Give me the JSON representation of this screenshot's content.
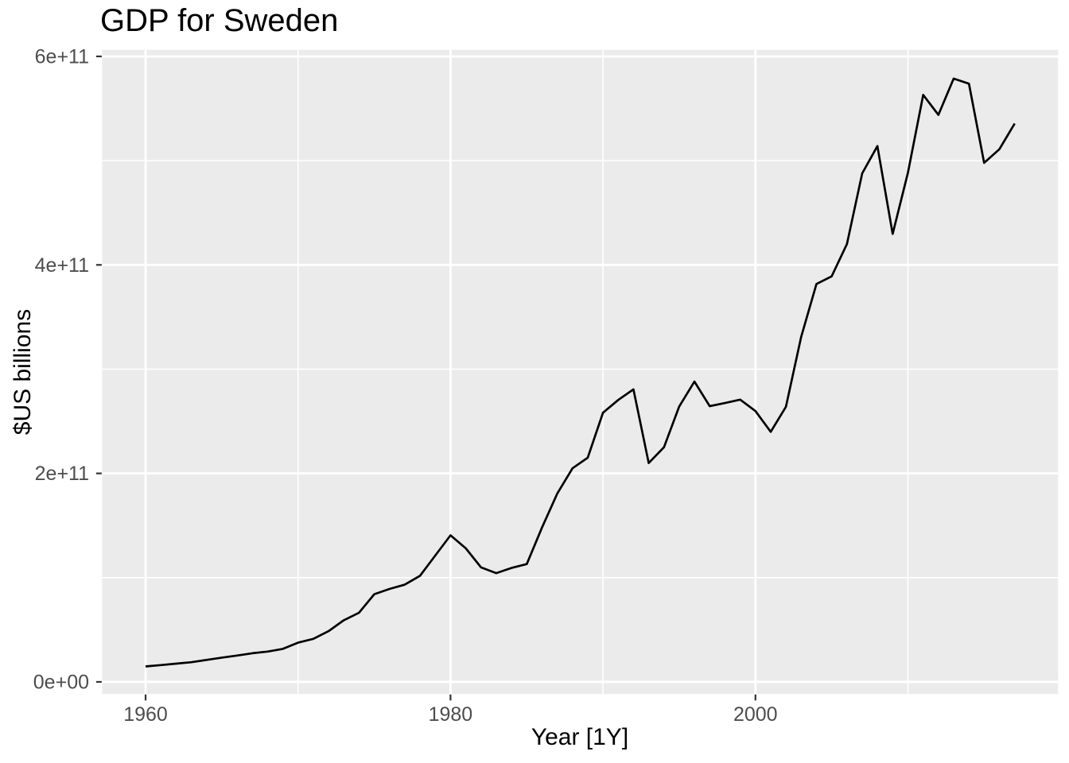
{
  "title": "GDP for Sweden",
  "chart_data": {
    "type": "line",
    "title": "GDP for Sweden",
    "xlabel": "Year [1Y]",
    "ylabel": "$US billions",
    "units": "current US dollars (y axis labels in scientific notation)",
    "x": [
      1960,
      1961,
      1962,
      1963,
      1964,
      1965,
      1966,
      1967,
      1968,
      1969,
      1970,
      1971,
      1972,
      1973,
      1974,
      1975,
      1976,
      1977,
      1978,
      1979,
      1980,
      1981,
      1982,
      1983,
      1984,
      1985,
      1986,
      1987,
      1988,
      1989,
      1990,
      1991,
      1992,
      1993,
      1994,
      1995,
      1996,
      1997,
      1998,
      1999,
      2000,
      2001,
      2002,
      2003,
      2004,
      2005,
      2006,
      2007,
      2008,
      2009,
      2010,
      2011,
      2012,
      2013,
      2014,
      2015,
      2016,
      2017
    ],
    "series": [
      {
        "name": "GDP for Sweden",
        "values_billions": [
          14.8,
          16.1,
          17.5,
          18.9,
          21.1,
          23.3,
          25.3,
          27.5,
          29.1,
          31.7,
          37.6,
          41.3,
          48.7,
          59.1,
          66.4,
          84.1,
          89.2,
          93.3,
          101.8,
          121.2,
          140.6,
          128.1,
          109.8,
          104.3,
          109.3,
          113.0,
          148.0,
          180.6,
          204.9,
          215.0,
          258.2,
          270.5,
          280.6,
          209.9,
          225.1,
          264.1,
          288.1,
          264.5,
          267.5,
          270.8,
          259.8,
          239.9,
          263.9,
          331.1,
          381.7,
          389.0,
          420.0,
          487.8,
          514.0,
          429.7,
          488.4,
          563.1,
          543.9,
          578.7,
          573.8,
          497.9,
          511.0,
          535.6
        ]
      }
    ],
    "x_ticks": [
      {
        "value": 1960,
        "label": "1960"
      },
      {
        "value": 1980,
        "label": "1980"
      },
      {
        "value": 2000,
        "label": "2000"
      }
    ],
    "x_minor": [
      1970,
      1990,
      2010
    ],
    "y_ticks": [
      {
        "value": 0,
        "label": "0e+00"
      },
      {
        "value": 200,
        "label": "2e+11"
      },
      {
        "value": 400,
        "label": "4e+11"
      },
      {
        "value": 600,
        "label": "6e+11"
      }
    ],
    "y_minor": [
      100,
      300,
      500
    ],
    "xlim": [
      1957.15,
      2019.85
    ],
    "ylim_billions": [
      -11.7,
      606.3
    ],
    "grid": true,
    "legend": "none"
  },
  "colors": {
    "figure_bg": "#FFFFFF",
    "panel_bg": "#EBEBEB",
    "grid": "#FFFFFF",
    "line": "#000000",
    "tick_mark": "#333333",
    "tick_label": "#4D4D4D",
    "title_text": "#000000"
  }
}
